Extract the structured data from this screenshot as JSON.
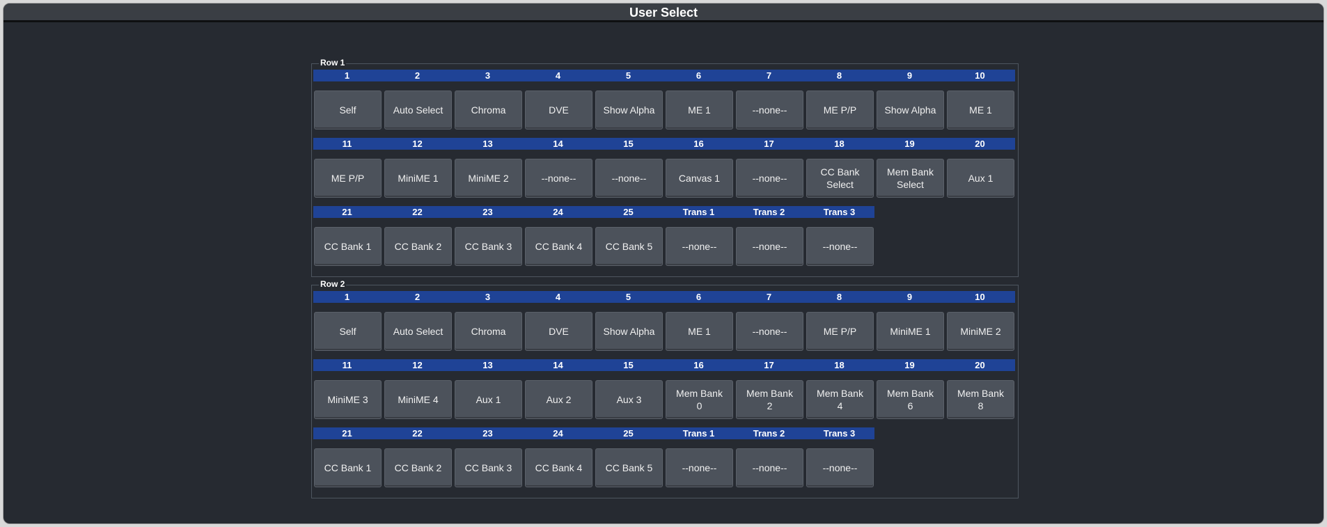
{
  "window": {
    "title": "User Select"
  },
  "groups": [
    {
      "label": "Row 1",
      "rows": [
        {
          "headers": [
            "1",
            "2",
            "3",
            "4",
            "5",
            "6",
            "7",
            "8",
            "9",
            "10"
          ],
          "buttons": [
            "Self",
            "Auto Select",
            "Chroma",
            "DVE",
            "Show Alpha",
            "ME 1",
            "--none--",
            "ME P/P",
            "Show Alpha",
            "ME 1"
          ]
        },
        {
          "headers": [
            "11",
            "12",
            "13",
            "14",
            "15",
            "16",
            "17",
            "18",
            "19",
            "20"
          ],
          "buttons": [
            "ME P/P",
            "MiniME 1",
            "MiniME 2",
            "--none--",
            "--none--",
            "Canvas 1",
            "--none--",
            "CC Bank\nSelect",
            "Mem Bank\nSelect",
            "Aux 1"
          ]
        },
        {
          "headers": [
            "21",
            "22",
            "23",
            "24",
            "25",
            "Trans 1",
            "Trans 2",
            "Trans 3"
          ],
          "buttons": [
            "CC Bank 1",
            "CC Bank 2",
            "CC Bank 3",
            "CC Bank 4",
            "CC Bank 5",
            "--none--",
            "--none--",
            "--none--"
          ]
        }
      ]
    },
    {
      "label": "Row 2",
      "rows": [
        {
          "headers": [
            "1",
            "2",
            "3",
            "4",
            "5",
            "6",
            "7",
            "8",
            "9",
            "10"
          ],
          "buttons": [
            "Self",
            "Auto Select",
            "Chroma",
            "DVE",
            "Show Alpha",
            "ME 1",
            "--none--",
            "ME P/P",
            "MiniME 1",
            "MiniME 2"
          ]
        },
        {
          "headers": [
            "11",
            "12",
            "13",
            "14",
            "15",
            "16",
            "17",
            "18",
            "19",
            "20"
          ],
          "buttons": [
            "MiniME 3",
            "MiniME 4",
            "Aux 1",
            "Aux 2",
            "Aux 3",
            "Mem Bank\n0",
            "Mem Bank\n2",
            "Mem Bank\n4",
            "Mem Bank\n6",
            "Mem Bank\n8"
          ]
        },
        {
          "headers": [
            "21",
            "22",
            "23",
            "24",
            "25",
            "Trans 1",
            "Trans 2",
            "Trans 3"
          ],
          "buttons": [
            "CC Bank 1",
            "CC Bank 2",
            "CC Bank 3",
            "CC Bank 4",
            "CC Bank 5",
            "--none--",
            "--none--",
            "--none--"
          ]
        }
      ]
    }
  ],
  "colors": {
    "background": "#262a31",
    "header_band": "#1f4396",
    "button": "#4c525b",
    "text": "#ffffff"
  }
}
